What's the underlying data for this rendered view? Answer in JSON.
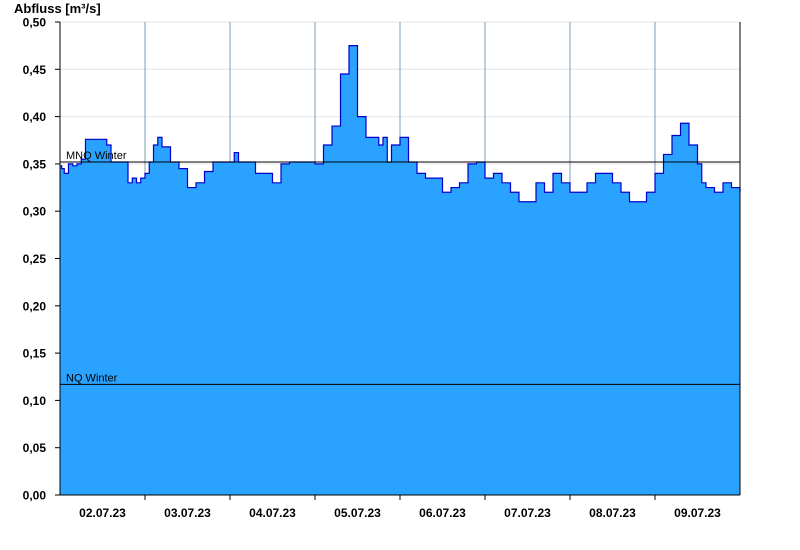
{
  "chart_data": {
    "type": "area",
    "ylabel": "Abfluss [m³/s]",
    "ylim": [
      0,
      0.5
    ],
    "yticks": [
      "0,00",
      "0,05",
      "0,10",
      "0,15",
      "0,20",
      "0,25",
      "0,30",
      "0,35",
      "0,40",
      "0,45",
      "0,50"
    ],
    "xlim_days": [
      0,
      8
    ],
    "xticks": [
      "02.07.23",
      "03.07.23",
      "04.07.23",
      "05.07.23",
      "06.07.23",
      "07.07.23",
      "08.07.23",
      "09.07.23"
    ],
    "grid": true,
    "fill_color": "#29a3ff",
    "line_color": "#0000cc",
    "reference_lines": [
      {
        "label": "MNQ Winter",
        "value": 0.352
      },
      {
        "label": "NQ Winter",
        "value": 0.117
      }
    ],
    "series": [
      {
        "x": [
          0,
          0.02,
          0.05,
          0.1,
          0.15,
          0.2,
          0.25,
          0.3,
          0.4,
          0.45,
          0.5,
          0.55,
          0.6,
          0.7,
          0.8,
          0.85,
          0.9,
          0.95,
          1.0,
          1.05,
          1.1,
          1.15,
          1.2,
          1.3,
          1.4,
          1.5,
          1.6,
          1.7,
          1.8,
          1.9,
          2.0,
          2.05,
          2.1,
          2.2,
          2.3,
          2.4,
          2.5,
          2.6,
          2.7,
          2.8,
          2.9,
          3.0,
          3.1,
          3.2,
          3.3,
          3.4,
          3.5,
          3.6,
          3.7,
          3.75,
          3.8,
          3.85,
          3.9,
          4.0,
          4.1,
          4.2,
          4.3,
          4.4,
          4.5,
          4.6,
          4.7,
          4.8,
          4.9,
          5.0,
          5.1,
          5.2,
          5.3,
          5.4,
          5.5,
          5.6,
          5.7,
          5.8,
          5.9,
          6.0,
          6.1,
          6.2,
          6.3,
          6.4,
          6.5,
          6.6,
          6.7,
          6.8,
          6.9,
          7.0,
          7.1,
          7.2,
          7.3,
          7.4,
          7.5,
          7.55,
          7.6,
          7.7,
          7.8,
          7.9,
          8.0
        ],
        "y": [
          0.348,
          0.345,
          0.34,
          0.35,
          0.348,
          0.35,
          0.355,
          0.376,
          0.376,
          0.376,
          0.376,
          0.37,
          0.352,
          0.352,
          0.33,
          0.335,
          0.33,
          0.335,
          0.34,
          0.352,
          0.37,
          0.378,
          0.368,
          0.352,
          0.345,
          0.325,
          0.33,
          0.342,
          0.352,
          0.352,
          0.352,
          0.362,
          0.352,
          0.352,
          0.34,
          0.34,
          0.33,
          0.35,
          0.352,
          0.352,
          0.352,
          0.35,
          0.37,
          0.39,
          0.445,
          0.475,
          0.4,
          0.378,
          0.378,
          0.37,
          0.378,
          0.352,
          0.37,
          0.378,
          0.352,
          0.34,
          0.335,
          0.335,
          0.32,
          0.325,
          0.33,
          0.35,
          0.352,
          0.335,
          0.34,
          0.33,
          0.32,
          0.31,
          0.31,
          0.33,
          0.32,
          0.34,
          0.33,
          0.32,
          0.32,
          0.33,
          0.34,
          0.34,
          0.33,
          0.32,
          0.31,
          0.31,
          0.32,
          0.34,
          0.36,
          0.38,
          0.393,
          0.37,
          0.35,
          0.33,
          0.325,
          0.32,
          0.33,
          0.325,
          0.32
        ]
      }
    ]
  }
}
